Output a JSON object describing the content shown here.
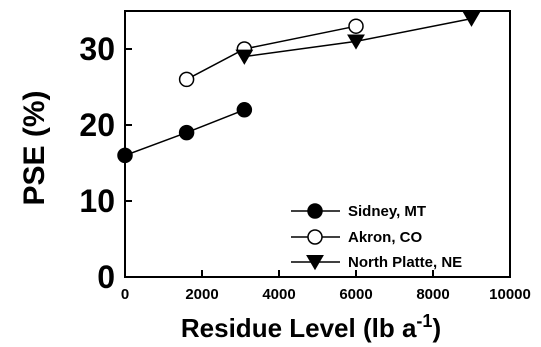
{
  "chart_data": {
    "type": "line",
    "title": "",
    "xlabel": "Residue Level (lb a",
    "xlabel_superscript": "-1",
    "xlabel_suffix": ")",
    "ylabel": "PSE (%)",
    "xlim": [
      0,
      10000
    ],
    "ylim": [
      0,
      35
    ],
    "x_ticks": [
      0,
      2000,
      4000,
      6000,
      8000,
      10000
    ],
    "x_tick_labels": [
      "0",
      "2000",
      "4000",
      "6000",
      "8000",
      "10000"
    ],
    "y_ticks": [
      0,
      10,
      20,
      30
    ],
    "y_tick_labels": [
      "0",
      "10",
      "20",
      "30"
    ],
    "grid": false,
    "legend_position": "bottom-right",
    "series": [
      {
        "name": "Sidney, MT",
        "marker": "filled-circle",
        "color": "#000000",
        "points": [
          [
            0,
            16
          ],
          [
            1600,
            19
          ],
          [
            3100,
            22
          ]
        ]
      },
      {
        "name": "Akron, CO",
        "marker": "open-circle",
        "color": "#000000",
        "points": [
          [
            1600,
            26
          ],
          [
            3100,
            30
          ],
          [
            6000,
            33
          ]
        ]
      },
      {
        "name": "North Platte, NE",
        "marker": "filled-triangle-down",
        "color": "#000000",
        "points": [
          [
            3100,
            29
          ],
          [
            6000,
            31
          ],
          [
            9000,
            34
          ]
        ]
      }
    ]
  }
}
